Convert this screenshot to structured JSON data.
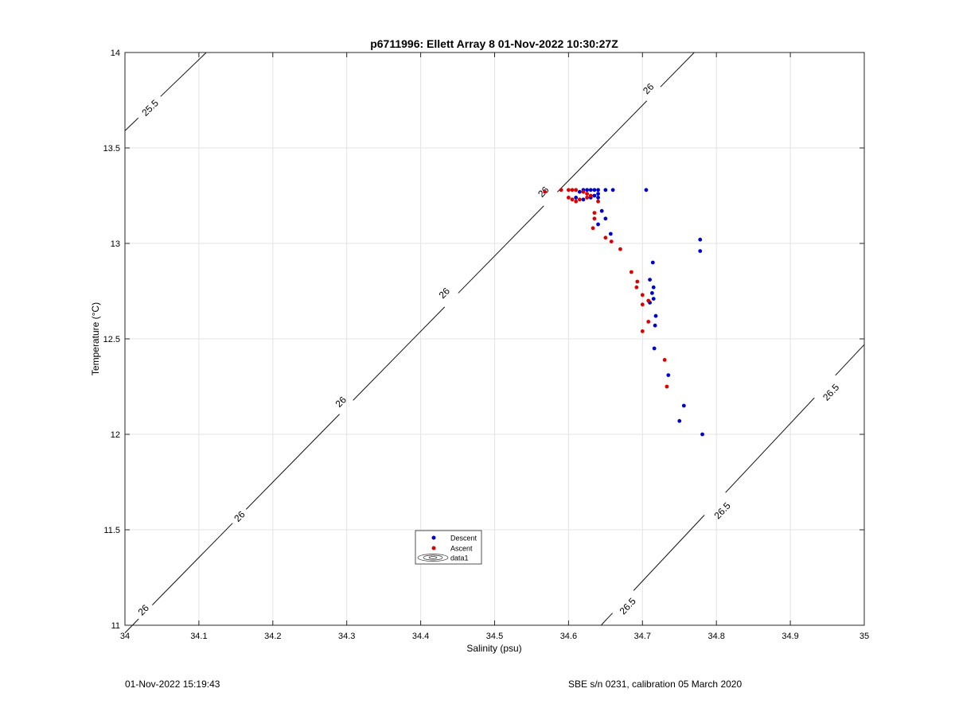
{
  "footer": {
    "left": "01-Nov-2022 15:19:43",
    "right": "SBE s/n 0231, calibration 05 March 2020"
  },
  "chart_data": {
    "type": "scatter",
    "title": "p6711996: Ellett Array 8 01-Nov-2022 10:30:27Z",
    "xlabel": "Salinity (psu)",
    "ylabel": "Temperature (°C)",
    "xlim": [
      34,
      35
    ],
    "ylim": [
      11,
      14
    ],
    "xticks": [
      34,
      34.1,
      34.2,
      34.3,
      34.4,
      34.5,
      34.6,
      34.7,
      34.8,
      34.9,
      35
    ],
    "xtick_labels": [
      "34",
      "34.1",
      "34.2",
      "34.3",
      "34.4",
      "34.5",
      "34.6",
      "34.7",
      "34.8",
      "34.9",
      "35"
    ],
    "yticks": [
      11,
      11.5,
      12,
      12.5,
      13,
      13.5,
      14
    ],
    "ytick_labels": [
      "11",
      "11.5",
      "12",
      "12.5",
      "13",
      "13.5",
      "14"
    ],
    "grid": true,
    "legend_position": "lower-left",
    "series": [
      {
        "name": "Descent",
        "color": "#0000cc",
        "points": [
          [
            34.705,
            13.28
          ],
          [
            34.66,
            13.28
          ],
          [
            34.65,
            13.28
          ],
          [
            34.64,
            13.28
          ],
          [
            34.635,
            13.28
          ],
          [
            34.63,
            13.28
          ],
          [
            34.625,
            13.28
          ],
          [
            34.62,
            13.28
          ],
          [
            34.615,
            13.27
          ],
          [
            34.64,
            13.26
          ],
          [
            34.635,
            13.25
          ],
          [
            34.63,
            13.24
          ],
          [
            34.64,
            13.24
          ],
          [
            34.62,
            13.23
          ],
          [
            34.61,
            13.24
          ],
          [
            34.645,
            13.17
          ],
          [
            34.65,
            13.13
          ],
          [
            34.64,
            13.1
          ],
          [
            34.657,
            13.05
          ],
          [
            34.778,
            13.02
          ],
          [
            34.778,
            12.96
          ],
          [
            34.714,
            12.9
          ],
          [
            34.71,
            12.81
          ],
          [
            34.715,
            12.77
          ],
          [
            34.713,
            12.74
          ],
          [
            34.715,
            12.71
          ],
          [
            34.71,
            12.69
          ],
          [
            34.718,
            12.62
          ],
          [
            34.717,
            12.57
          ],
          [
            34.716,
            12.45
          ],
          [
            34.735,
            12.31
          ],
          [
            34.756,
            12.15
          ],
          [
            34.75,
            12.07
          ],
          [
            34.781,
            12.0
          ]
        ]
      },
      {
        "name": "Ascent",
        "color": "#dd0000",
        "points": [
          [
            34.568,
            13.27
          ],
          [
            34.59,
            13.28
          ],
          [
            34.6,
            13.28
          ],
          [
            34.605,
            13.28
          ],
          [
            34.61,
            13.28
          ],
          [
            34.62,
            13.27
          ],
          [
            34.625,
            13.26
          ],
          [
            34.6,
            13.24
          ],
          [
            34.605,
            13.23
          ],
          [
            34.61,
            13.22
          ],
          [
            34.615,
            13.23
          ],
          [
            34.625,
            13.24
          ],
          [
            34.63,
            13.25
          ],
          [
            34.64,
            13.22
          ],
          [
            34.635,
            13.16
          ],
          [
            34.635,
            13.13
          ],
          [
            34.633,
            13.08
          ],
          [
            34.65,
            13.03
          ],
          [
            34.658,
            13.01
          ],
          [
            34.67,
            12.97
          ],
          [
            34.685,
            12.85
          ],
          [
            34.693,
            12.8
          ],
          [
            34.692,
            12.77
          ],
          [
            34.7,
            12.73
          ],
          [
            34.7,
            12.68
          ],
          [
            34.708,
            12.7
          ],
          [
            34.708,
            12.59
          ],
          [
            34.7,
            12.54
          ],
          [
            34.73,
            12.39
          ],
          [
            34.733,
            12.25
          ]
        ]
      },
      {
        "name": "data1",
        "type": "contour",
        "description": "sigma-theta isopycnals",
        "levels": [
          {
            "value": "25.5",
            "line": [
              [
                34.0,
                13.59
              ],
              [
                34.11,
                14.0
              ]
            ],
            "labels": [
              {
                "text": "25.5",
                "at": [
                  34.034,
                  13.71
                ]
              }
            ]
          },
          {
            "value": "26",
            "line": [
              [
                34.0,
                10.96
              ],
              [
                34.77,
                14.0
              ]
            ],
            "labels": [
              {
                "text": "26",
                "at": [
                  34.025,
                  11.08
                ]
              },
              {
                "text": "26",
                "at": [
                  34.155,
                  11.57
                ]
              },
              {
                "text": "26",
                "at": [
                  34.292,
                  12.17
                ]
              },
              {
                "text": "26",
                "at": [
                  34.432,
                  12.74
                ]
              },
              {
                "text": "26",
                "at": [
                  34.566,
                  13.27
                ]
              },
              {
                "text": "26",
                "at": [
                  34.708,
                  13.81
                ]
              }
            ]
          },
          {
            "value": "26.5",
            "line": [
              [
                34.644,
                11.0
              ],
              [
                35.0,
                12.47
              ]
            ],
            "labels": [
              {
                "text": "26.5",
                "at": [
                  34.68,
                  11.1
                ]
              },
              {
                "text": "26.5",
                "at": [
                  34.808,
                  11.6
                ]
              },
              {
                "text": "26.5",
                "at": [
                  34.955,
                  12.22
                ]
              }
            ]
          }
        ]
      }
    ]
  }
}
